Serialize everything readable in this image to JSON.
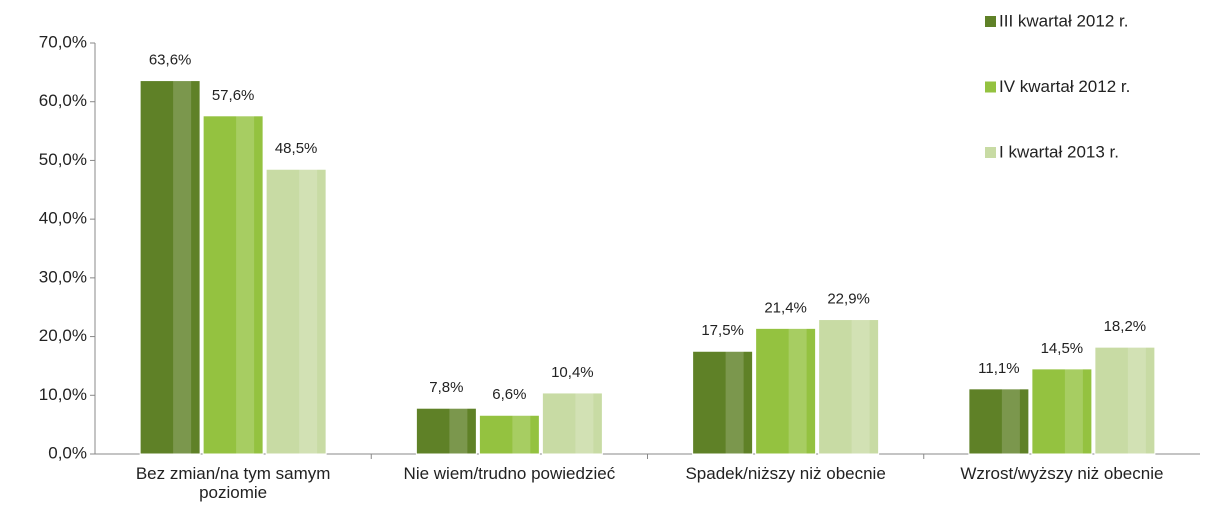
{
  "chart_data": {
    "type": "bar",
    "categories": [
      "Bez zmian/na tym samym poziomie",
      "Nie wiem/trudno powiedzieć",
      "Spadek/niższy niż obecnie",
      "Wzrost/wyższy niż obecnie"
    ],
    "series": [
      {
        "name": "III kwartał 2012 r.",
        "color": "#5f8127",
        "values": [
          63.6,
          7.8,
          17.5,
          11.1
        ],
        "value_labels": [
          "63,6%",
          "7,8%",
          "17,5%",
          "11,1%"
        ]
      },
      {
        "name": "IV kwartał 2012 r.",
        "color": "#94c240",
        "values": [
          57.6,
          6.6,
          21.4,
          14.5
        ],
        "value_labels": [
          "57,6%",
          "6,6%",
          "21,4%",
          "14,5%"
        ]
      },
      {
        "name": "I kwartał 2013 r.",
        "color": "#c8dba4",
        "values": [
          48.5,
          10.4,
          22.9,
          18.2
        ],
        "value_labels": [
          "48,5%",
          "10,4%",
          "22,9%",
          "18,2%"
        ]
      }
    ],
    "ylim": [
      0,
      70
    ],
    "yticks": [
      {
        "value": 0,
        "label": "0,0%"
      },
      {
        "value": 10,
        "label": "10,0%"
      },
      {
        "value": 20,
        "label": "20,0%"
      },
      {
        "value": 30,
        "label": "30,0%"
      },
      {
        "value": 40,
        "label": "40,0%"
      },
      {
        "value": 50,
        "label": "50,0%"
      },
      {
        "value": 60,
        "label": "60,0%"
      },
      {
        "value": 70,
        "label": "70,0%"
      }
    ],
    "grid": false,
    "legend": "top-right"
  }
}
